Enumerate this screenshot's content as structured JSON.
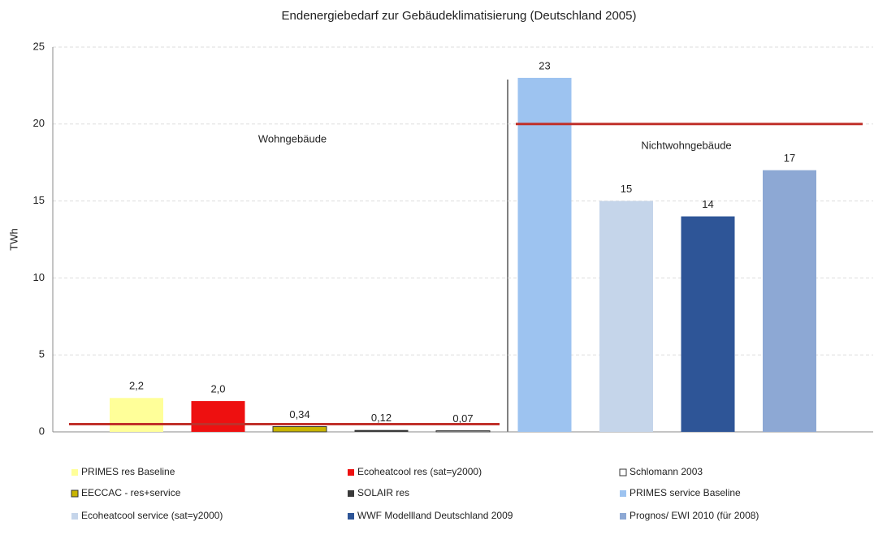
{
  "chart_data": {
    "type": "bar",
    "title": "Endenergiebedarf zur Gebäudeklimatisierung  (Deutschland 2005)",
    "y_label": "TWh",
    "categories": [
      "PRIMES res Baseline",
      "Ecoheatcool res (sat=y2000)",
      "EECCAC - res+service",
      "SOLAIR res",
      "Schlomann 2003",
      "PRIMES service Baseline",
      "Ecoheatcool service (sat=y2000)",
      "WWF Modellland Deutschland 2009",
      "Prognos/ EWI 2010 (für 2008)"
    ],
    "values": [
      2.2,
      2.0,
      0.34,
      0.12,
      0.07,
      23,
      15,
      14,
      17
    ],
    "value_labels": [
      "2,2",
      "2,0",
      "0,34",
      "0,12",
      "0,07",
      "23",
      "15",
      "14",
      "17"
    ],
    "colors": [
      "#ffff99",
      "#ee1010",
      "#c8b400",
      "#3a3a3a",
      "#ffffff",
      "#9dc3f0",
      "#c5d5ea",
      "#2e5597",
      "#8da8d4"
    ],
    "annotations": [
      "Wohngebäude",
      "Nichtwohngebäude"
    ],
    "reference_lines": [
      0.5,
      20
    ],
    "ylim": [
      0,
      25
    ],
    "yticks": [
      0,
      5,
      10,
      15,
      20,
      25
    ],
    "grid": true
  }
}
